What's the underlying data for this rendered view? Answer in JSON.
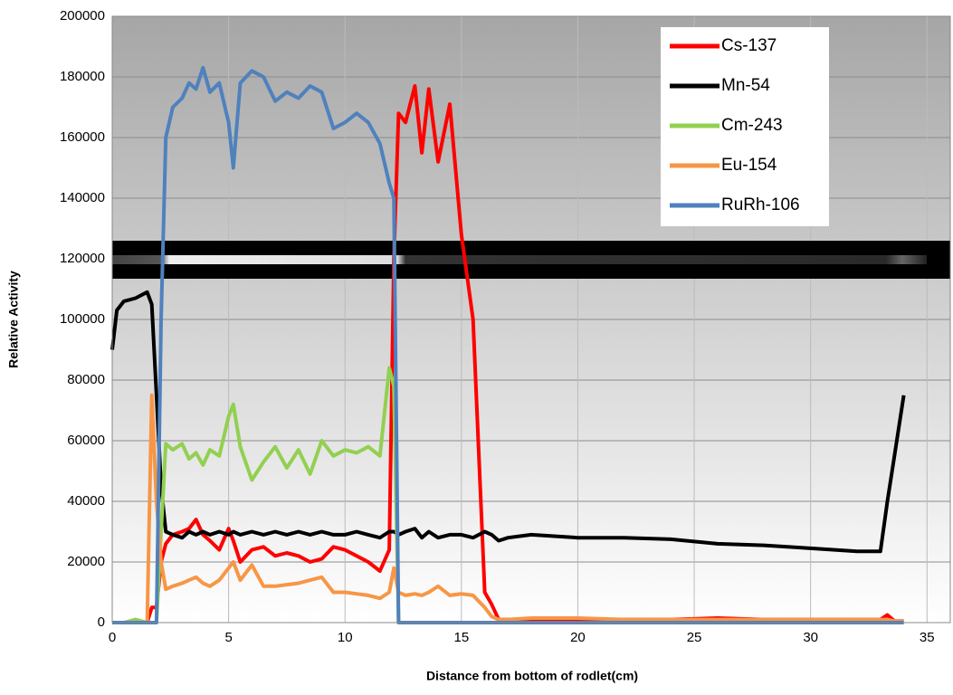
{
  "chart_data": {
    "type": "line",
    "x_label": "Distance from bottom of rodlet(cm)",
    "y_label": "Relative Activity",
    "x": [
      0,
      0.2,
      0.5,
      1,
      1.5,
      1.7,
      1.9,
      2.1,
      2.3,
      2.6,
      3,
      3.3,
      3.6,
      3.9,
      4.2,
      4.6,
      5,
      5.2,
      5.5,
      6,
      6.5,
      7,
      7.5,
      8,
      8.5,
      9,
      9.5,
      10,
      10.5,
      11,
      11.5,
      11.9,
      12.1,
      12.3,
      12.6,
      13,
      13.3,
      13.6,
      14,
      14.5,
      15,
      15.5,
      16,
      16.3,
      16.6,
      17,
      18,
      20,
      22,
      24,
      26,
      28,
      30,
      32,
      33,
      33.3,
      33.6,
      34
    ],
    "series": [
      {
        "name": "Cs-137",
        "color": "#ff0000",
        "values": [
          0,
          0,
          0,
          0,
          0,
          5000,
          5000,
          20000,
          26000,
          29000,
          30000,
          31000,
          34000,
          29000,
          27000,
          24000,
          31000,
          27000,
          20000,
          24000,
          25000,
          22000,
          23000,
          22000,
          20000,
          21000,
          25000,
          24000,
          22000,
          20000,
          17000,
          24000,
          120000,
          168000,
          165000,
          177000,
          155000,
          176000,
          152000,
          171000,
          128000,
          100000,
          10000,
          6000,
          1000,
          1000,
          1000,
          1000,
          1000,
          1000,
          1500,
          1000,
          1000,
          1000,
          1000,
          2500,
          500,
          500
        ]
      },
      {
        "name": "Mn-54",
        "color": "#000000",
        "values": [
          90000,
          103000,
          106000,
          107000,
          109000,
          105000,
          75000,
          45000,
          30000,
          29000,
          28000,
          30000,
          29000,
          30000,
          29000,
          30000,
          29000,
          30000,
          29000,
          30000,
          29000,
          30000,
          29000,
          30000,
          29000,
          30000,
          29000,
          29000,
          30000,
          29000,
          28000,
          30000,
          30000,
          29000,
          30000,
          31000,
          28000,
          30000,
          28000,
          29000,
          29000,
          28000,
          30000,
          29000,
          27000,
          28000,
          29000,
          28000,
          28000,
          27500,
          26000,
          25500,
          24500,
          23500,
          23500,
          40000,
          55000,
          75000
        ]
      },
      {
        "name": "Cm-243",
        "color": "#92d050",
        "values": [
          0,
          0,
          0,
          1000,
          0,
          0,
          0,
          30000,
          59000,
          57000,
          59000,
          54000,
          56000,
          52000,
          57000,
          55000,
          68000,
          72000,
          58000,
          47000,
          53000,
          58000,
          51000,
          57000,
          49000,
          60000,
          55000,
          57000,
          56000,
          58000,
          55000,
          84000,
          78000,
          0,
          0,
          0,
          0,
          0,
          0,
          0,
          0,
          0,
          0,
          0,
          0,
          0,
          0,
          0,
          0,
          0,
          0,
          0,
          0,
          0,
          0,
          0,
          0,
          0
        ]
      },
      {
        "name": "Eu-154",
        "color": "#f79646",
        "values": [
          0,
          0,
          0,
          0,
          0,
          75000,
          40000,
          20000,
          11000,
          12000,
          13000,
          14000,
          15000,
          13000,
          12000,
          14000,
          18000,
          20000,
          14000,
          19000,
          12000,
          12000,
          12500,
          13000,
          14000,
          15000,
          10000,
          10000,
          9500,
          9000,
          8000,
          10000,
          18000,
          10000,
          9000,
          9500,
          9000,
          10000,
          12000,
          9000,
          9500,
          9000,
          5000,
          2000,
          1000,
          1000,
          1500,
          1500,
          1000,
          1000,
          1000,
          1000,
          1000,
          1000,
          1000,
          1000,
          500,
          500
        ]
      },
      {
        "name": "RuRh-106",
        "color": "#4f81bd",
        "values": [
          0,
          0,
          0,
          0,
          0,
          0,
          0,
          100000,
          160000,
          170000,
          173000,
          178000,
          176000,
          183000,
          175000,
          178000,
          165000,
          150000,
          178000,
          182000,
          180000,
          172000,
          175000,
          173000,
          177000,
          175000,
          163000,
          165000,
          168000,
          165000,
          158000,
          145000,
          140000,
          0,
          0,
          0,
          0,
          0,
          0,
          0,
          0,
          0,
          0,
          0,
          0,
          0,
          0,
          0,
          0,
          0,
          0,
          0,
          0,
          0,
          0,
          0,
          0,
          0
        ]
      }
    ],
    "xlim": [
      0,
      36
    ],
    "xticks": [
      0,
      5,
      10,
      15,
      20,
      25,
      30,
      35
    ],
    "ylim": [
      0,
      200000
    ],
    "yticks": [
      0,
      20000,
      40000,
      60000,
      80000,
      100000,
      120000,
      140000,
      160000,
      180000,
      200000
    ],
    "grid": true,
    "legend": "upper right"
  }
}
